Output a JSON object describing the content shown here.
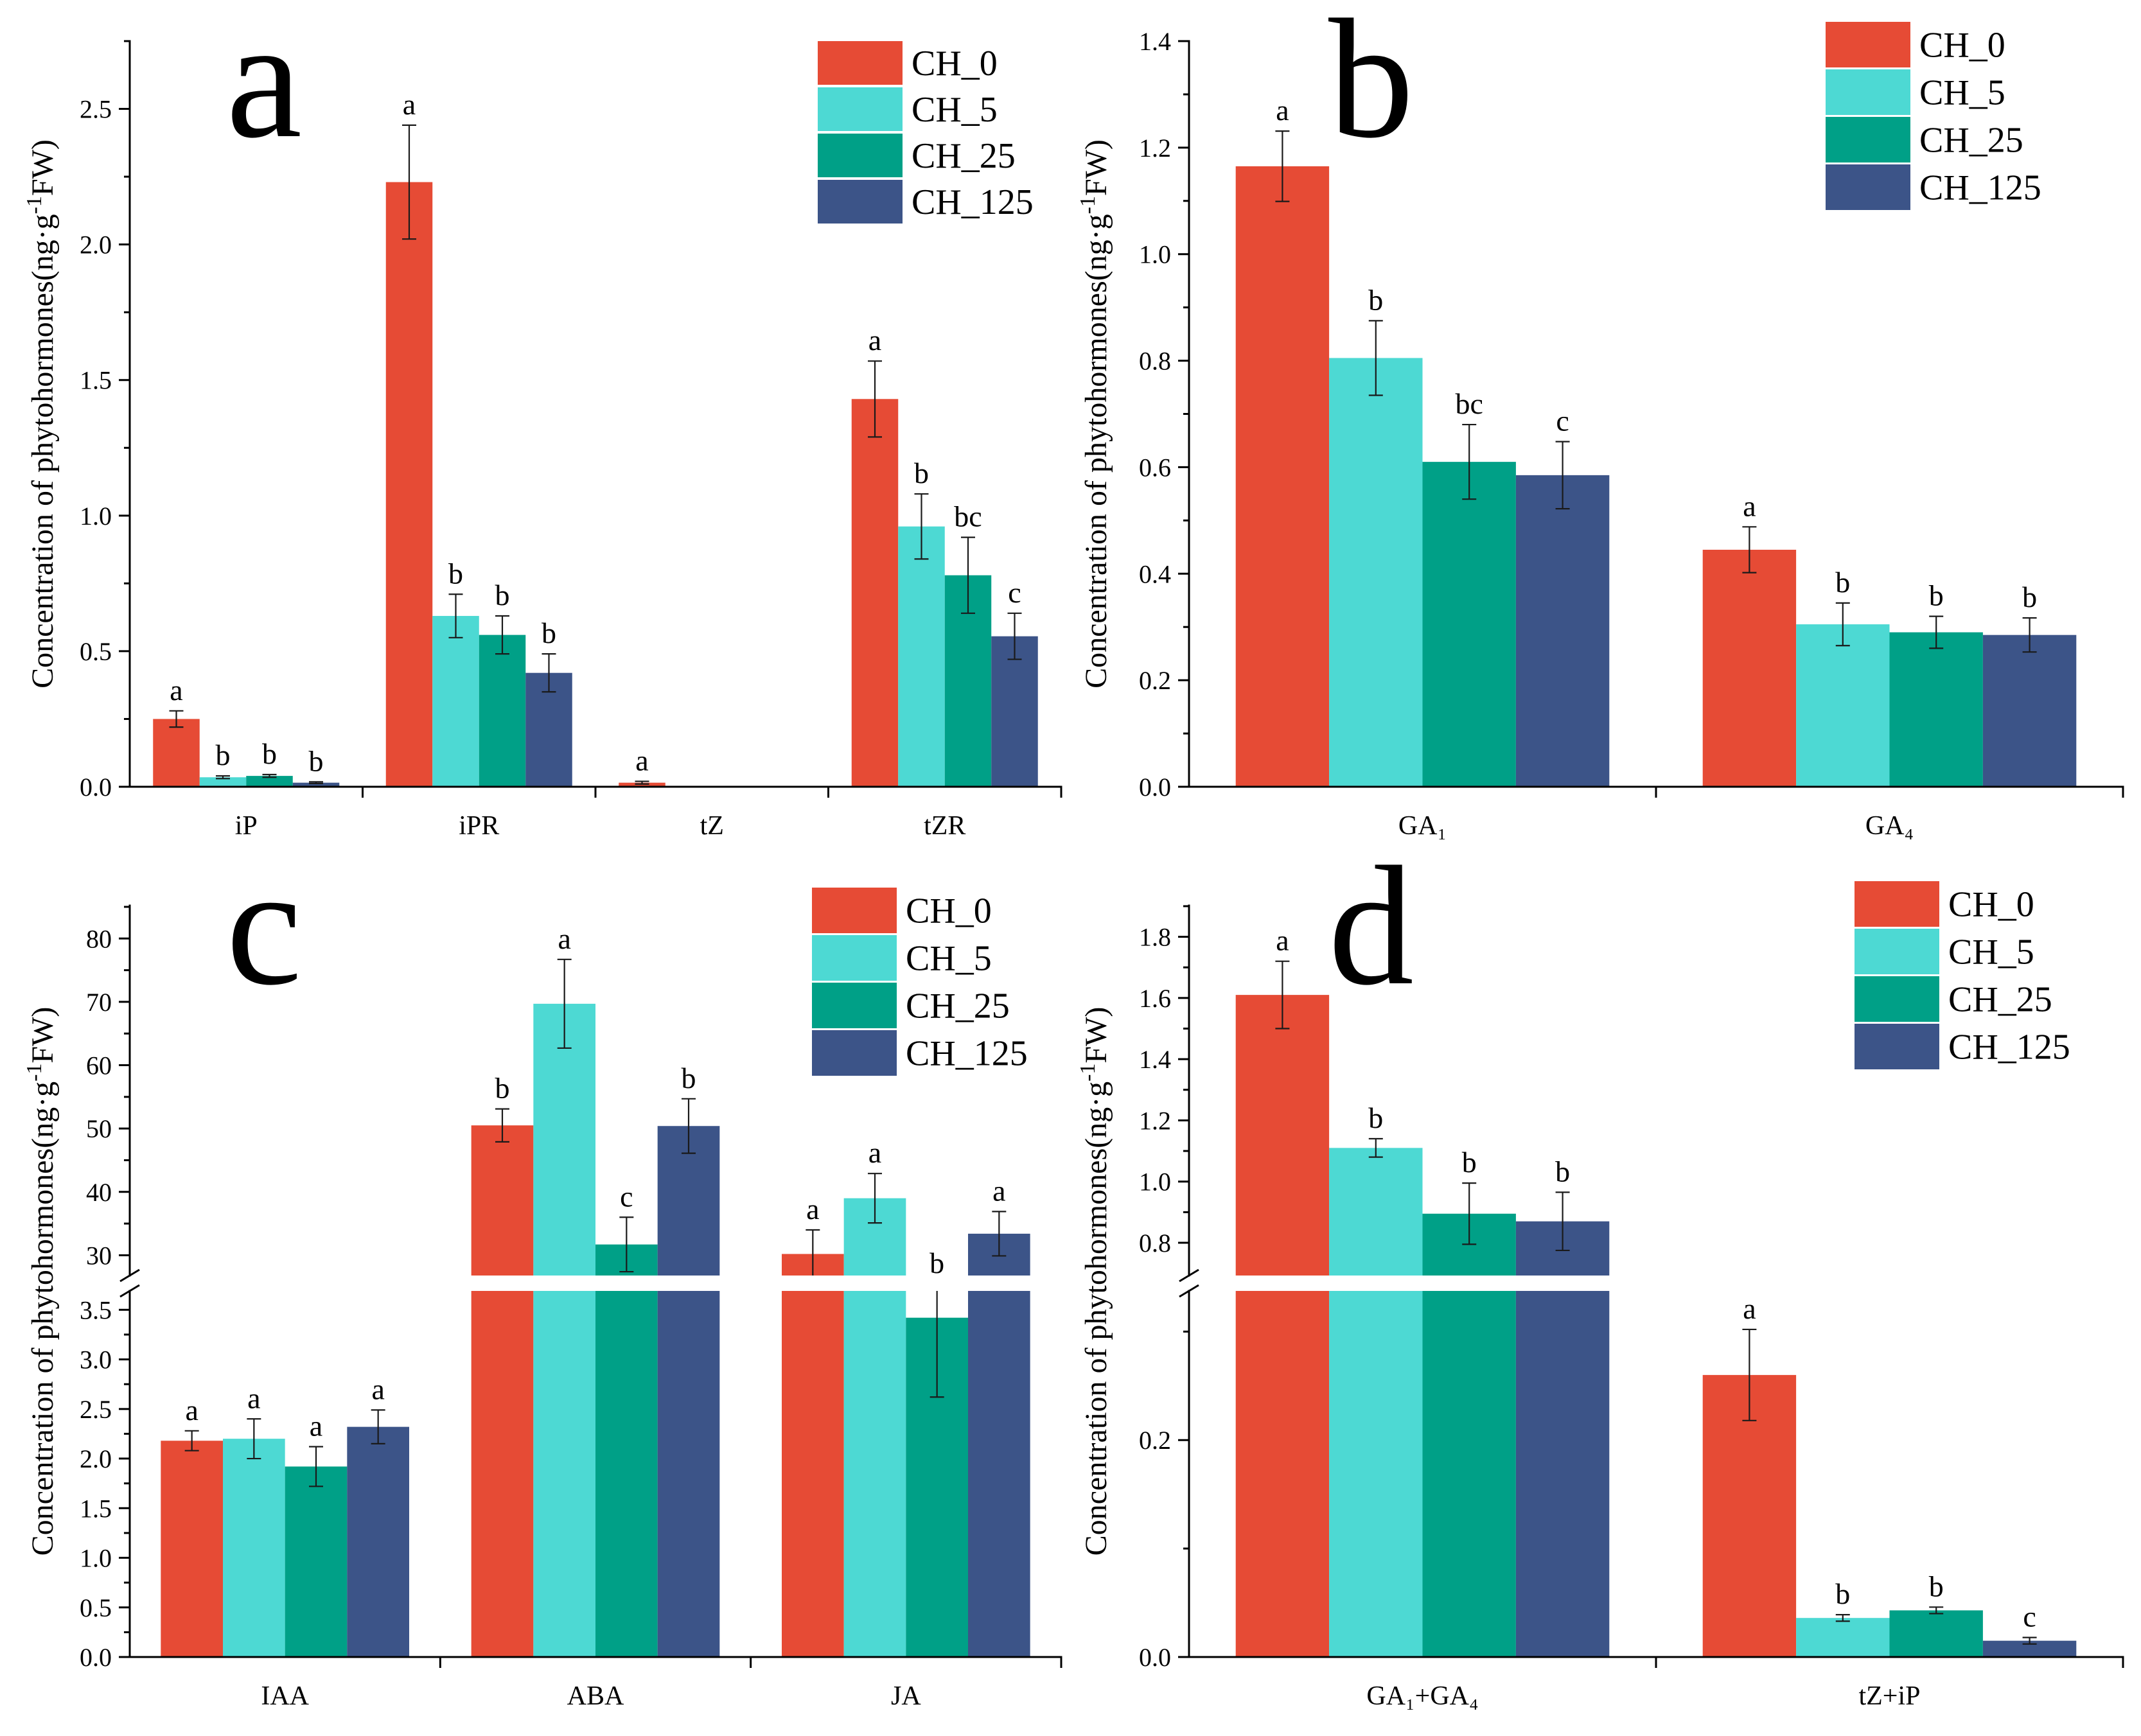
{
  "chart_data": [
    {
      "type": "bar",
      "panel_label": "a",
      "categories": [
        "iP",
        "iPR",
        "tZ",
        "tZR"
      ],
      "ylabel": {
        "text": "Concentration of phytohormones(ng·g",
        "sup": "-1",
        "end": "FW)"
      },
      "ylim": [
        0,
        2.75
      ],
      "yticks": [
        "0.0",
        "0.5",
        "1.0",
        "1.5",
        "2.0",
        "2.5"
      ],
      "grid": false,
      "legend_position": "top-right",
      "series": [
        {
          "name": "CH_0",
          "color": "#E64B35",
          "values": [
            0.25,
            2.23,
            0.015,
            1.43
          ],
          "errors": [
            0.03,
            0.21,
            0.005,
            0.14
          ],
          "letters": [
            "a",
            "a",
            "a",
            "a"
          ]
        },
        {
          "name": "CH_5",
          "color": "#4DD9D3",
          "values": [
            0.035,
            0.63,
            0,
            0.96
          ],
          "errors": [
            0.005,
            0.08,
            null,
            0.12
          ],
          "letters": [
            "b",
            "b",
            null,
            "b"
          ]
        },
        {
          "name": "CH_25",
          "color": "#00A087",
          "values": [
            0.04,
            0.56,
            0,
            0.78
          ],
          "errors": [
            0.005,
            0.07,
            null,
            0.14
          ],
          "letters": [
            "b",
            "b",
            null,
            "bc"
          ]
        },
        {
          "name": "CH_125",
          "color": "#3C5488",
          "values": [
            0.015,
            0.42,
            0,
            0.555
          ],
          "errors": [
            0.003,
            0.07,
            null,
            0.085
          ],
          "letters": [
            "b",
            "b",
            null,
            "c"
          ]
        }
      ]
    },
    {
      "type": "bar",
      "panel_label": "b",
      "categories": [
        "GA₁",
        "GA₄"
      ],
      "ylabel": {
        "text": "Concentration of phytohormones(ng·g",
        "sup": "-1",
        "end": "FW)"
      },
      "ylim": [
        0,
        1.4
      ],
      "yticks": [
        "0.0",
        "0.2",
        "0.4",
        "0.6",
        "0.8",
        "1.0",
        "1.2",
        "1.4"
      ],
      "grid": false,
      "legend_position": "top-right",
      "series": [
        {
          "name": "CH_0",
          "color": "#E64B35",
          "values": [
            1.165,
            0.445
          ],
          "errors": [
            0.066,
            0.043
          ],
          "letters": [
            "a",
            "a"
          ]
        },
        {
          "name": "CH_5",
          "color": "#4DD9D3",
          "values": [
            0.805,
            0.305
          ],
          "errors": [
            0.07,
            0.04
          ],
          "letters": [
            "b",
            "b"
          ]
        },
        {
          "name": "CH_25",
          "color": "#00A087",
          "values": [
            0.61,
            0.29
          ],
          "errors": [
            0.07,
            0.03
          ],
          "letters": [
            "bc",
            "b"
          ]
        },
        {
          "name": "CH_125",
          "color": "#3C5488",
          "values": [
            0.585,
            0.285
          ],
          "errors": [
            0.063,
            0.032
          ],
          "letters": [
            "c",
            "b"
          ]
        }
      ]
    },
    {
      "type": "bar",
      "panel_label": "c",
      "categories": [
        "IAA",
        "ABA",
        "JA"
      ],
      "ylabel": {
        "text": "Concentration of phytohormones(ng·g",
        "sup": "-1",
        "end": "FW)"
      },
      "y_axis_break": true,
      "ylim_lower": [
        0,
        3.69
      ],
      "ylim_upper": [
        26.8,
        85.2
      ],
      "yticks_lower": [
        "0.0",
        "0.5",
        "1.0",
        "1.5",
        "2.0",
        "2.5",
        "3.0",
        "3.5"
      ],
      "yticks_upper": [
        "30",
        "40",
        "50",
        "60",
        "70",
        "80"
      ],
      "grid": false,
      "legend_position": "top-right",
      "series": [
        {
          "name": "CH_0",
          "color": "#E64B35",
          "values": [
            2.18,
            50.5,
            30.2
          ],
          "errors": [
            0.1,
            2.6,
            3.8
          ],
          "letters": [
            "a",
            "b",
            "a"
          ]
        },
        {
          "name": "CH_5",
          "color": "#4DD9D3",
          "values": [
            2.2,
            69.7,
            39.0
          ],
          "errors": [
            0.2,
            7.0,
            3.9
          ],
          "letters": [
            "a",
            "a",
            "a"
          ]
        },
        {
          "name": "CH_25",
          "color": "#00A087",
          "values": [
            1.92,
            31.7,
            3.42
          ],
          "errors": [
            0.2,
            4.3,
            0.8
          ],
          "letters": [
            "a",
            "c",
            "b"
          ]
        },
        {
          "name": "CH_125",
          "color": "#3C5488",
          "values": [
            2.32,
            50.4,
            33.4
          ],
          "errors": [
            0.17,
            4.3,
            3.5
          ],
          "letters": [
            "a",
            "b",
            "a"
          ]
        }
      ]
    },
    {
      "type": "bar",
      "panel_label": "d",
      "categories": [
        "GA₁+GA₄",
        "tZ+iP"
      ],
      "ylabel": {
        "text": "Concentration of phytohormones(ng·g",
        "sup": "-1",
        "end": "FW)"
      },
      "y_axis_break": true,
      "ylim_lower": [
        0,
        0.3375
      ],
      "ylim_upper": [
        0.693,
        1.902
      ],
      "yticks_lower": [
        "0.0",
        "0.2"
      ],
      "yticks_upper": [
        "0.8",
        "1.0",
        "1.2",
        "1.4",
        "1.6",
        "1.8"
      ],
      "grid": false,
      "legend_position": "top-right",
      "series": [
        {
          "name": "CH_0",
          "color": "#E64B35",
          "values": [
            1.61,
            0.26
          ],
          "errors": [
            0.11,
            0.042
          ],
          "letters": [
            "a",
            "a"
          ]
        },
        {
          "name": "CH_5",
          "color": "#4DD9D3",
          "values": [
            1.11,
            0.036
          ],
          "errors": [
            0.03,
            0.003
          ],
          "letters": [
            "b",
            "b"
          ]
        },
        {
          "name": "CH_25",
          "color": "#00A087",
          "values": [
            0.895,
            0.043
          ],
          "errors": [
            0.1,
            0.003
          ],
          "letters": [
            "b",
            "b"
          ]
        },
        {
          "name": "CH_125",
          "color": "#3C5488",
          "values": [
            0.87,
            0.015
          ],
          "errors": [
            0.095,
            0.003
          ],
          "letters": [
            "b",
            "c"
          ]
        }
      ]
    }
  ]
}
